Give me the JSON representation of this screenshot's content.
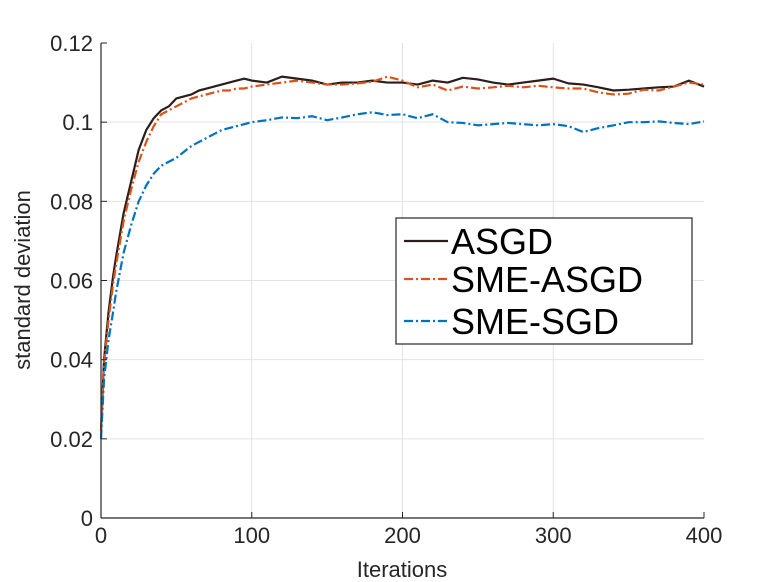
{
  "chart_data": {
    "type": "line",
    "title": "",
    "xlabel": "Iterations",
    "ylabel": "standard deviation",
    "xlim": [
      0,
      400
    ],
    "ylim": [
      0,
      0.12
    ],
    "xticks": [
      0,
      100,
      200,
      300,
      400
    ],
    "xtick_labels": [
      "0",
      "100",
      "200",
      "300",
      "400"
    ],
    "yticks": [
      0,
      0.02,
      0.04,
      0.06,
      0.08,
      0.1,
      0.12
    ],
    "ytick_labels": [
      "0",
      "0.02",
      "0.04",
      "0.06",
      "0.08",
      "0.1",
      "0.12"
    ],
    "grid": true,
    "legend_position": "center-right",
    "x": [
      0,
      2,
      5,
      8,
      10,
      15,
      20,
      25,
      30,
      35,
      40,
      45,
      50,
      55,
      60,
      65,
      70,
      75,
      80,
      85,
      90,
      95,
      100,
      110,
      120,
      130,
      140,
      150,
      160,
      170,
      180,
      190,
      200,
      210,
      220,
      230,
      240,
      250,
      260,
      270,
      280,
      290,
      300,
      310,
      320,
      330,
      340,
      350,
      360,
      370,
      380,
      390,
      400
    ],
    "series": [
      {
        "name": "ASGD",
        "color": "#2b1d1a",
        "dash": "solid",
        "values": [
          0.022,
          0.04,
          0.052,
          0.061,
          0.066,
          0.077,
          0.085,
          0.093,
          0.098,
          0.101,
          0.103,
          0.104,
          0.106,
          0.1065,
          0.107,
          0.108,
          0.1085,
          0.109,
          0.1095,
          0.11,
          0.1105,
          0.111,
          0.1105,
          0.11,
          0.1115,
          0.111,
          0.1105,
          0.1095,
          0.11,
          0.11,
          0.1105,
          0.11,
          0.11,
          0.1095,
          0.1105,
          0.11,
          0.1112,
          0.1108,
          0.11,
          0.1095,
          0.11,
          0.1105,
          0.111,
          0.1098,
          0.1095,
          0.1088,
          0.108,
          0.1082,
          0.1085,
          0.1088,
          0.109,
          0.1105,
          0.109
        ]
      },
      {
        "name": "SME-ASGD",
        "color": "#d95319",
        "dash": "dashdot",
        "values": [
          0.022,
          0.039,
          0.05,
          0.059,
          0.064,
          0.075,
          0.083,
          0.09,
          0.095,
          0.099,
          0.102,
          0.103,
          0.104,
          0.105,
          0.106,
          0.1065,
          0.107,
          0.1075,
          0.108,
          0.108,
          0.1085,
          0.1085,
          0.109,
          0.1095,
          0.11,
          0.1105,
          0.11,
          0.1095,
          0.1095,
          0.1098,
          0.1102,
          0.1115,
          0.1105,
          0.1088,
          0.1095,
          0.108,
          0.109,
          0.1085,
          0.1088,
          0.1092,
          0.1088,
          0.1092,
          0.1088,
          0.1085,
          0.1085,
          0.1075,
          0.107,
          0.1072,
          0.1082,
          0.108,
          0.109,
          0.11,
          0.1095
        ]
      },
      {
        "name": "SME-SGD",
        "color": "#0072bd",
        "dash": "dashdot",
        "values": [
          0.02,
          0.035,
          0.045,
          0.052,
          0.057,
          0.067,
          0.074,
          0.08,
          0.084,
          0.087,
          0.089,
          0.09,
          0.091,
          0.0925,
          0.094,
          0.095,
          0.096,
          0.097,
          0.098,
          0.0985,
          0.099,
          0.0995,
          0.1,
          0.1005,
          0.1012,
          0.101,
          0.1015,
          0.1005,
          0.1012,
          0.102,
          0.1025,
          0.1018,
          0.102,
          0.101,
          0.102,
          0.1,
          0.0998,
          0.0992,
          0.0995,
          0.0998,
          0.0995,
          0.0992,
          0.0995,
          0.099,
          0.0975,
          0.0985,
          0.0992,
          0.1,
          0.1,
          0.1002,
          0.0998,
          0.0995,
          0.1002
        ]
      }
    ]
  }
}
